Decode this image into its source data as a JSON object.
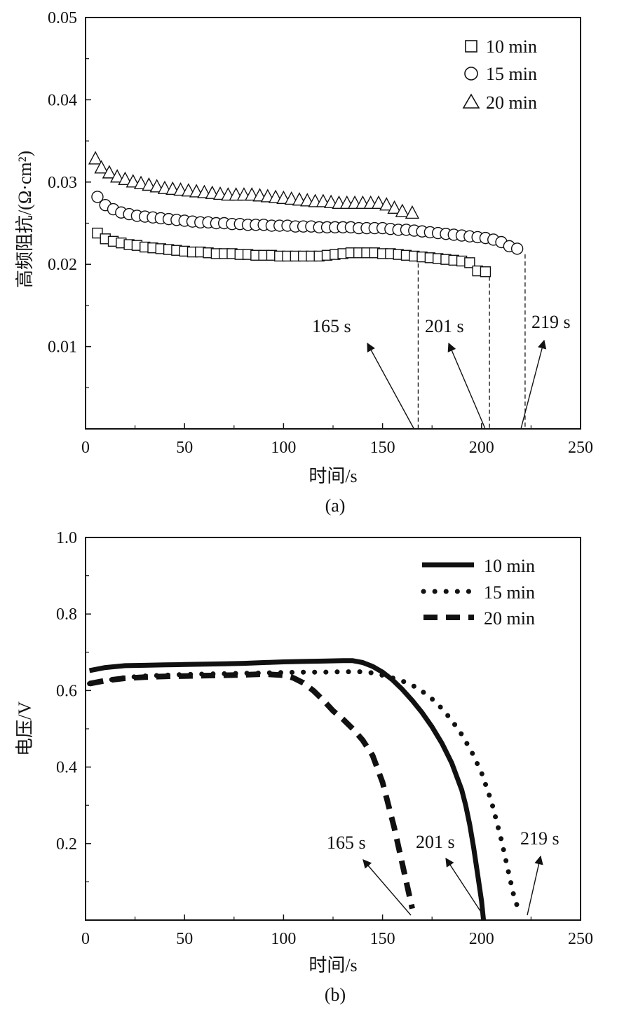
{
  "chart_data": [
    {
      "panel": "(a)",
      "type": "scatter",
      "xlabel": "时间/s",
      "ylabel": "高频阻抗/(Ω·cm²)",
      "xlim": [
        0,
        250
      ],
      "ylim": [
        0,
        0.05
      ],
      "x_ticks": [
        "0",
        "50",
        "100",
        "150",
        "200",
        "250"
      ],
      "y_ticks": [
        "0.01",
        "0.02",
        "0.03",
        "0.04",
        "0.05"
      ],
      "legend": [
        "10 min",
        "15 min",
        "20 min"
      ],
      "legend_position": "top-right",
      "series": [
        {
          "name": "10 min",
          "marker": "square",
          "x": [
            6,
            10,
            14,
            18,
            22,
            26,
            30,
            34,
            38,
            42,
            46,
            50,
            54,
            58,
            62,
            66,
            70,
            74,
            78,
            82,
            86,
            90,
            94,
            98,
            102,
            106,
            110,
            114,
            118,
            122,
            126,
            130,
            134,
            138,
            142,
            146,
            150,
            154,
            158,
            162,
            166,
            170,
            174,
            178,
            182,
            186,
            190,
            194,
            198,
            202
          ],
          "y": [
            0.0238,
            0.0231,
            0.0228,
            0.0226,
            0.0224,
            0.0223,
            0.0221,
            0.022,
            0.0219,
            0.0218,
            0.0217,
            0.0216,
            0.0215,
            0.0215,
            0.0214,
            0.0213,
            0.0213,
            0.0213,
            0.0212,
            0.0212,
            0.0211,
            0.0211,
            0.0211,
            0.021,
            0.021,
            0.021,
            0.021,
            0.021,
            0.021,
            0.0211,
            0.0212,
            0.0213,
            0.0214,
            0.0214,
            0.0214,
            0.0214,
            0.0213,
            0.0213,
            0.0212,
            0.0211,
            0.021,
            0.0209,
            0.0208,
            0.0207,
            0.0206,
            0.0205,
            0.0204,
            0.0202,
            0.0192,
            0.0191
          ]
        },
        {
          "name": "15 min",
          "marker": "circle",
          "x": [
            6,
            10,
            14,
            18,
            22,
            26,
            30,
            34,
            38,
            42,
            46,
            50,
            54,
            58,
            62,
            66,
            70,
            74,
            78,
            82,
            86,
            90,
            94,
            98,
            102,
            106,
            110,
            114,
            118,
            122,
            126,
            130,
            134,
            138,
            142,
            146,
            150,
            154,
            158,
            162,
            166,
            170,
            174,
            178,
            182,
            186,
            190,
            194,
            198,
            202,
            206,
            210,
            214,
            218
          ],
          "y": [
            0.0282,
            0.0272,
            0.0267,
            0.0263,
            0.0261,
            0.0259,
            0.0258,
            0.0257,
            0.0256,
            0.0255,
            0.0254,
            0.0253,
            0.0252,
            0.0251,
            0.0251,
            0.025,
            0.025,
            0.0249,
            0.0249,
            0.0248,
            0.0248,
            0.0248,
            0.0247,
            0.0247,
            0.0247,
            0.0246,
            0.0246,
            0.0246,
            0.0245,
            0.0245,
            0.0245,
            0.0245,
            0.0245,
            0.0244,
            0.0244,
            0.0244,
            0.0244,
            0.0243,
            0.0242,
            0.0242,
            0.0241,
            0.024,
            0.0239,
            0.0238,
            0.0237,
            0.0236,
            0.0235,
            0.0234,
            0.0233,
            0.0232,
            0.023,
            0.0227,
            0.0222,
            0.0219
          ]
        },
        {
          "name": "20 min",
          "marker": "triangle",
          "x": [
            5,
            8,
            12,
            16,
            20,
            24,
            28,
            32,
            36,
            40,
            44,
            48,
            52,
            56,
            60,
            64,
            68,
            72,
            76,
            80,
            84,
            88,
            92,
            96,
            100,
            104,
            108,
            112,
            116,
            120,
            124,
            128,
            132,
            136,
            140,
            144,
            148,
            152,
            156,
            160,
            165
          ],
          "y": [
            0.0328,
            0.0317,
            0.0311,
            0.0306,
            0.0303,
            0.03,
            0.0298,
            0.0296,
            0.0294,
            0.0292,
            0.0291,
            0.029,
            0.0289,
            0.0288,
            0.0287,
            0.0286,
            0.0285,
            0.0284,
            0.0284,
            0.0284,
            0.0284,
            0.0283,
            0.0282,
            0.0281,
            0.028,
            0.0279,
            0.0278,
            0.0277,
            0.0276,
            0.0276,
            0.0275,
            0.0274,
            0.0274,
            0.0274,
            0.0274,
            0.0274,
            0.0274,
            0.0272,
            0.0268,
            0.0264,
            0.0262
          ]
        }
      ],
      "annotations": [
        {
          "text": "165 s",
          "x": 168
        },
        {
          "text": "201 s",
          "x": 204
        },
        {
          "text": "219 s",
          "x": 222
        }
      ]
    },
    {
      "panel": "(b)",
      "type": "line",
      "xlabel": "时间/s",
      "ylabel": "电压/V",
      "xlim": [
        0,
        250
      ],
      "ylim": [
        0,
        1.0
      ],
      "x_ticks": [
        "0",
        "50",
        "100",
        "150",
        "200",
        "250"
      ],
      "y_ticks": [
        "0.2",
        "0.4",
        "0.6",
        "0.8",
        "1.0"
      ],
      "legend": [
        "10 min",
        "15 min",
        "20 min"
      ],
      "legend_position": "top-right",
      "series": [
        {
          "name": "10 min",
          "style": "solid",
          "x": [
            2,
            10,
            20,
            30,
            40,
            50,
            60,
            70,
            80,
            90,
            100,
            110,
            120,
            130,
            135,
            140,
            145,
            150,
            155,
            160,
            165,
            170,
            175,
            180,
            185,
            190,
            192,
            194,
            196,
            198,
            200,
            201
          ],
          "y": [
            0.652,
            0.66,
            0.665,
            0.666,
            0.667,
            0.668,
            0.669,
            0.67,
            0.671,
            0.673,
            0.675,
            0.676,
            0.677,
            0.678,
            0.678,
            0.673,
            0.663,
            0.648,
            0.628,
            0.603,
            0.574,
            0.542,
            0.505,
            0.462,
            0.41,
            0.34,
            0.3,
            0.25,
            0.19,
            0.12,
            0.05,
            0.0
          ]
        },
        {
          "name": "15 min",
          "style": "dotted",
          "x": [
            2,
            10,
            20,
            30,
            40,
            50,
            60,
            70,
            80,
            90,
            100,
            110,
            120,
            130,
            140,
            145,
            150,
            155,
            160,
            165,
            170,
            175,
            180,
            185,
            190,
            195,
            200,
            205,
            210,
            213,
            216,
            219
          ],
          "y": [
            0.618,
            0.626,
            0.634,
            0.638,
            0.64,
            0.642,
            0.643,
            0.644,
            0.645,
            0.646,
            0.647,
            0.648,
            0.648,
            0.649,
            0.649,
            0.646,
            0.64,
            0.633,
            0.625,
            0.614,
            0.598,
            0.578,
            0.553,
            0.522,
            0.485,
            0.44,
            0.385,
            0.31,
            0.21,
            0.14,
            0.07,
            0.02
          ]
        },
        {
          "name": "20 min",
          "style": "dashed",
          "x": [
            2,
            10,
            20,
            30,
            40,
            50,
            60,
            70,
            80,
            90,
            100,
            105,
            110,
            115,
            120,
            125,
            130,
            135,
            140,
            145,
            150,
            153,
            156,
            159,
            162,
            165
          ],
          "y": [
            0.618,
            0.626,
            0.632,
            0.635,
            0.637,
            0.638,
            0.639,
            0.64,
            0.641,
            0.643,
            0.64,
            0.633,
            0.62,
            0.6,
            0.575,
            0.547,
            0.525,
            0.5,
            0.47,
            0.43,
            0.36,
            0.3,
            0.24,
            0.17,
            0.1,
            0.03
          ]
        }
      ],
      "annotations": [
        {
          "text": "165 s",
          "x": 165
        },
        {
          "text": "201 s",
          "x": 201
        },
        {
          "text": "219 s",
          "x": 219
        }
      ]
    }
  ],
  "captions": {
    "a": "(a)",
    "b": "(b)"
  }
}
